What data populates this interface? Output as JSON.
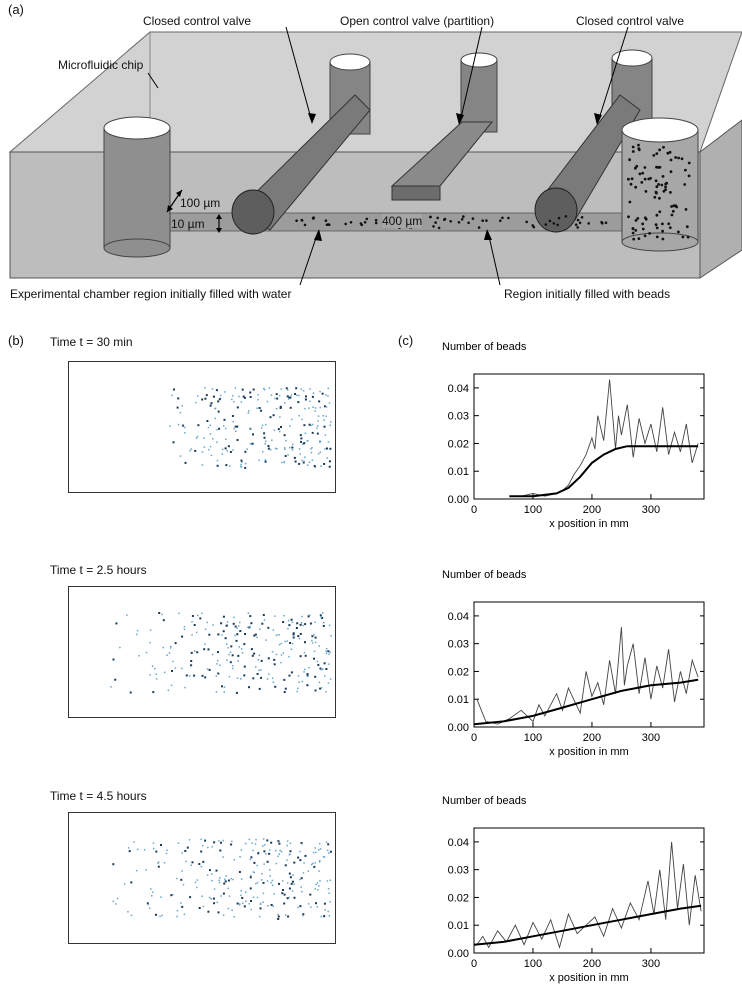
{
  "panel_a": {
    "letter": "(a)",
    "labels": {
      "chip": "Microfluidic chip",
      "closed_valve_left": "Closed  control valve",
      "open_valve": "Open control valve (partition)",
      "closed_valve_right": "Closed control valve",
      "dim_100": "100 µm",
      "dim_10": "10 µm",
      "dim_400": "400 µm",
      "water_region": "Experimental chamber region initially filled with water",
      "beads_region": "Region initially filled with beads"
    },
    "colors": {
      "chip": "#c4c4c4",
      "cylinder": "#8e8e8e",
      "rod": "#6f6f6f",
      "bead": "#111111"
    }
  },
  "panel_b": {
    "letter": "(b)",
    "snapshots": [
      {
        "time_label": "Time t = 30 min"
      },
      {
        "time_label": "Time t = 2.5 hours"
      },
      {
        "time_label": "Time t = 4.5 hours"
      }
    ]
  },
  "panel_c": {
    "letter": "(c)"
  },
  "chart_data": [
    {
      "type": "line",
      "ylabel": "Number of beads",
      "xlabel": "x position in mm",
      "xlim": [
        0,
        390
      ],
      "ylim": [
        0,
        0.045
      ],
      "xticks": [
        0,
        100,
        200,
        300
      ],
      "yticks": [
        0.0,
        0.01,
        0.02,
        0.03,
        0.04
      ],
      "ytick_labels": [
        "0.00",
        "0.01",
        "0.02",
        "0.03",
        "0.04"
      ],
      "series": [
        {
          "x": [
            60,
            80,
            100,
            120,
            140,
            150,
            160,
            170,
            180,
            190,
            200,
            205,
            210,
            220,
            230,
            240,
            245,
            250,
            260,
            270,
            280,
            290,
            300,
            310,
            320,
            330,
            340,
            350,
            360,
            370,
            380
          ],
          "values": [
            0.001,
            0.001,
            0.002,
            0.001,
            0.002,
            0.003,
            0.005,
            0.009,
            0.012,
            0.016,
            0.022,
            0.018,
            0.03,
            0.021,
            0.043,
            0.018,
            0.03,
            0.023,
            0.034,
            0.015,
            0.029,
            0.02,
            0.027,
            0.017,
            0.033,
            0.016,
            0.024,
            0.017,
            0.027,
            0.013,
            0.02
          ]
        },
        {
          "x": [
            60,
            100,
            140,
            160,
            180,
            200,
            220,
            240,
            260,
            280,
            300,
            340,
            380
          ],
          "values": [
            0.001,
            0.001,
            0.002,
            0.004,
            0.008,
            0.013,
            0.016,
            0.018,
            0.019,
            0.019,
            0.019,
            0.019,
            0.019
          ]
        }
      ]
    },
    {
      "type": "line",
      "ylabel": "Number of beads",
      "xlabel": "x position in mm",
      "xlim": [
        0,
        390
      ],
      "ylim": [
        0,
        0.045
      ],
      "xticks": [
        0,
        100,
        200,
        300
      ],
      "yticks": [
        0.0,
        0.01,
        0.02,
        0.03,
        0.04
      ],
      "ytick_labels": [
        "0.00",
        "0.01",
        "0.02",
        "0.03",
        "0.04"
      ],
      "series": [
        {
          "x": [
            5,
            20,
            40,
            60,
            80,
            100,
            110,
            120,
            140,
            150,
            160,
            180,
            190,
            200,
            210,
            220,
            230,
            240,
            250,
            255,
            260,
            270,
            280,
            290,
            300,
            310,
            320,
            330,
            340,
            350,
            360,
            370,
            380
          ],
          "values": [
            0.01,
            0.002,
            0.001,
            0.003,
            0.006,
            0.002,
            0.008,
            0.004,
            0.012,
            0.006,
            0.014,
            0.005,
            0.02,
            0.011,
            0.016,
            0.008,
            0.024,
            0.012,
            0.036,
            0.015,
            0.022,
            0.03,
            0.012,
            0.025,
            0.01,
            0.022,
            0.014,
            0.028,
            0.009,
            0.02,
            0.012,
            0.024,
            0.018
          ]
        },
        {
          "x": [
            0,
            50,
            100,
            150,
            200,
            250,
            300,
            350,
            380
          ],
          "values": [
            0.001,
            0.002,
            0.004,
            0.007,
            0.01,
            0.013,
            0.015,
            0.016,
            0.017
          ]
        }
      ]
    },
    {
      "type": "line",
      "ylabel": "Number of beads",
      "xlabel": "x position in mm",
      "xlim": [
        0,
        390
      ],
      "ylim": [
        0,
        0.045
      ],
      "xticks": [
        0,
        100,
        200,
        300
      ],
      "yticks": [
        0.0,
        0.01,
        0.02,
        0.03,
        0.04
      ],
      "ytick_labels": [
        "0.00",
        "0.01",
        "0.02",
        "0.03",
        "0.04"
      ],
      "series": [
        {
          "x": [
            5,
            15,
            25,
            40,
            55,
            70,
            85,
            100,
            115,
            130,
            145,
            160,
            175,
            190,
            205,
            220,
            235,
            250,
            265,
            280,
            295,
            305,
            315,
            325,
            335,
            345,
            355,
            365,
            375,
            385
          ],
          "values": [
            0.003,
            0.006,
            0.002,
            0.008,
            0.004,
            0.01,
            0.003,
            0.011,
            0.005,
            0.012,
            0.002,
            0.014,
            0.007,
            0.01,
            0.013,
            0.006,
            0.016,
            0.009,
            0.018,
            0.012,
            0.026,
            0.014,
            0.03,
            0.012,
            0.04,
            0.016,
            0.032,
            0.01,
            0.028,
            0.015
          ]
        },
        {
          "x": [
            0,
            50,
            100,
            150,
            200,
            250,
            300,
            350,
            385
          ],
          "values": [
            0.003,
            0.004,
            0.006,
            0.008,
            0.01,
            0.012,
            0.014,
            0.016,
            0.017
          ]
        }
      ]
    }
  ]
}
